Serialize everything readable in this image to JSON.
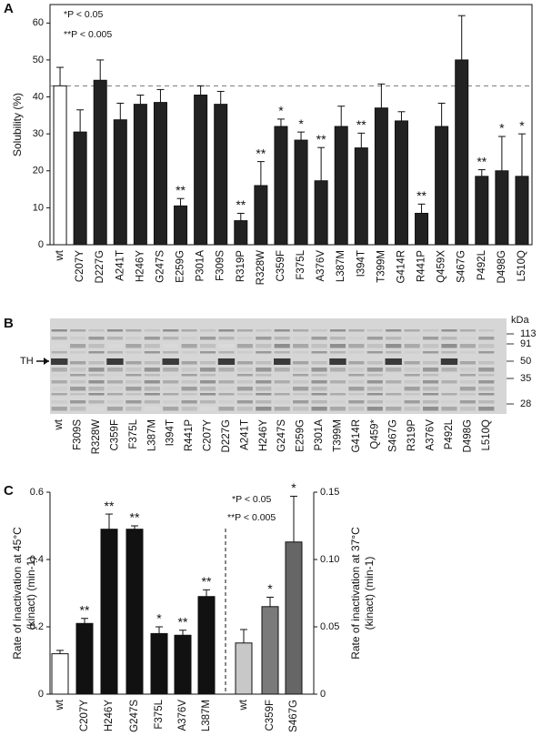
{
  "chart_data": [
    {
      "type": "bar",
      "panel": "A",
      "y_label": "Solubility (%)",
      "annotations": [
        "*P < 0.05",
        "**P < 0.005"
      ],
      "categories": [
        "wt",
        "C207Y",
        "D227G",
        "A241T",
        "H246Y",
        "G247S",
        "E259G",
        "P301A",
        "F309S",
        "R319P",
        "R328W",
        "C359F",
        "F375L",
        "A376V",
        "L387M",
        "I394T",
        "T399M",
        "G414R",
        "R441P",
        "Q459X",
        "S467G",
        "P492L",
        "D498G",
        "L510Q"
      ],
      "series": [
        {
          "values": [
            43,
            30.5,
            44.5,
            33.8,
            38,
            38.5,
            10.5,
            40.5,
            38,
            6.5,
            16,
            32,
            28.3,
            17.3,
            32,
            26.2,
            37,
            33.5,
            8.5,
            32,
            50,
            18.5,
            20,
            18.5
          ],
          "errors": [
            5,
            6,
            5.5,
            4.5,
            2.5,
            3.5,
            2,
            2.5,
            3.5,
            2,
            6.5,
            2,
            2.2,
            9,
            5.5,
            4,
            6.5,
            2.5,
            2.5,
            6.3,
            12,
            1.8,
            9.3,
            11.5
          ],
          "significance": [
            null,
            null,
            null,
            null,
            null,
            null,
            "**",
            null,
            null,
            "**",
            "**",
            "*",
            "*",
            "**",
            null,
            "**",
            null,
            null,
            "**",
            null,
            null,
            "**",
            "*",
            "*"
          ],
          "colors": [
            "#ffffff",
            "#222222",
            "#222222",
            "#222222",
            "#222222",
            "#222222",
            "#222222",
            "#222222",
            "#222222",
            "#222222",
            "#222222",
            "#222222",
            "#222222",
            "#222222",
            "#222222",
            "#222222",
            "#222222",
            "#222222",
            "#222222",
            "#222222",
            "#222222",
            "#222222",
            "#222222",
            "#222222"
          ]
        }
      ],
      "reference_line": 43,
      "ylim": [
        0,
        65
      ],
      "yticks": [
        0,
        10,
        20,
        30,
        40,
        50,
        60
      ]
    },
    {
      "type": "gel",
      "panel": "B",
      "band_label": "TH",
      "marker_unit": "kDa",
      "markers": [
        113,
        91,
        50,
        35,
        28
      ],
      "lanes": [
        "wt",
        "F309S",
        "R328W",
        "C359F",
        "F375L",
        "L387M",
        "I394T",
        "R441P",
        "C207Y",
        "D227G",
        "A241T",
        "H246Y",
        "G247S",
        "E259G",
        "P301A",
        "T399M",
        "G414R",
        "Q459*",
        "S467G",
        "R319P",
        "A376V",
        "P492L",
        "D498G",
        "L510Q"
      ]
    },
    {
      "type": "bar",
      "panel": "C",
      "y_label": [
        "Rate of inactivation at 45°C",
        "(kinact) (min-1)"
      ],
      "y2_label": [
        "Rate of inactivation at 37°C",
        "(kinact) (min-1)"
      ],
      "annotations": [
        "*P < 0.05",
        "**P < 0.005"
      ],
      "categories": [
        "wt",
        "C207Y",
        "H246Y",
        "G247S",
        "F375L",
        "A376V",
        "L387M",
        "wt",
        "C359F",
        "S467G"
      ],
      "series": [
        {
          "values": [
            0.12,
            0.21,
            0.49,
            0.49,
            0.18,
            0.175,
            0.29,
            null,
            null,
            null
          ],
          "errors": [
            0.01,
            0.015,
            0.045,
            0.01,
            0.02,
            0.015,
            0.02,
            null,
            null,
            null
          ],
          "significance": [
            null,
            "**",
            "**",
            "**",
            "*",
            "**",
            "**",
            null,
            null,
            null
          ],
          "colors": [
            "#ffffff",
            "#111111",
            "#111111",
            "#111111",
            "#111111",
            "#111111",
            "#111111",
            null,
            null,
            null
          ]
        },
        {
          "axis": "y2",
          "values": [
            null,
            null,
            null,
            null,
            null,
            null,
            null,
            0.038,
            0.065,
            0.113
          ],
          "errors": [
            null,
            null,
            null,
            null,
            null,
            null,
            null,
            0.01,
            0.007,
            0.034
          ],
          "significance": [
            null,
            null,
            null,
            null,
            null,
            null,
            null,
            null,
            "*",
            "*"
          ],
          "colors": [
            null,
            null,
            null,
            null,
            null,
            null,
            null,
            "#c8c8c8",
            "#7a7a7a",
            "#666666"
          ]
        }
      ],
      "ylim": [
        0,
        0.6
      ],
      "yticks": [
        0,
        0.2,
        0.4,
        0.6
      ],
      "y2lim": [
        0,
        0.15
      ],
      "y2ticks": [
        0,
        0.05,
        {
          "value": 0.1,
          "label": "0.10"
        },
        0.15
      ]
    }
  ]
}
